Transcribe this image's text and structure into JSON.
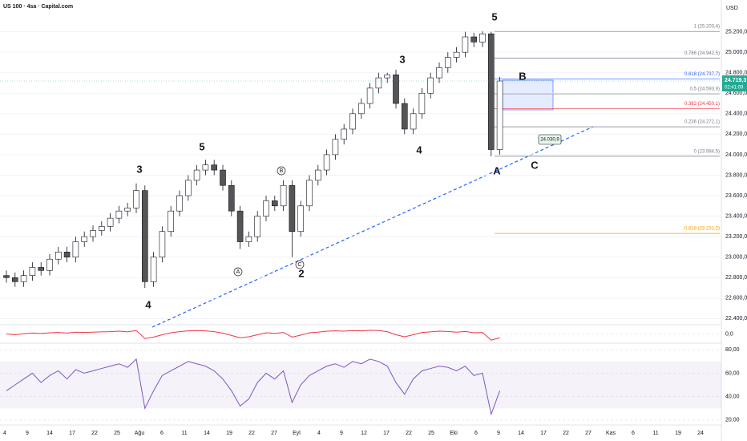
{
  "title": "US 100 · 4sa · Capital.com",
  "currency": "USD",
  "chart_data": [
    {
      "type": "candlestick",
      "open": [
        22820,
        22800,
        22760,
        22820,
        22900,
        22870,
        22980,
        23050,
        23000,
        23150,
        23200,
        23260,
        23300,
        23380,
        23450,
        23480,
        23650,
        22760,
        23000,
        23250,
        23450,
        23600,
        23750,
        23850,
        23900,
        23850,
        23700,
        23450,
        23150,
        23200,
        23400,
        23550,
        23500,
        23700,
        23250,
        23500,
        23750,
        23850,
        24000,
        24150,
        24250,
        24400,
        24500,
        24650,
        24750,
        24780,
        24500,
        24250,
        24400,
        24600,
        24750,
        24850,
        24950,
        25000,
        25150,
        25100,
        25180,
        24050
      ],
      "high": [
        22870,
        22850,
        22870,
        22950,
        22950,
        23030,
        23100,
        23100,
        23200,
        23250,
        23310,
        23350,
        23430,
        23500,
        23530,
        23720,
        23700,
        23050,
        23300,
        23500,
        23650,
        23800,
        23900,
        23950,
        23950,
        23900,
        23750,
        23500,
        23250,
        23450,
        23600,
        23600,
        23750,
        23750,
        23550,
        23800,
        23900,
        24050,
        24200,
        24300,
        24450,
        24550,
        24700,
        24800,
        24800,
        24830,
        24550,
        24450,
        24650,
        24800,
        24900,
        25000,
        25050,
        25200,
        25190,
        25203.4,
        25200,
        24760
      ],
      "low": [
        22750,
        22710,
        22710,
        22770,
        22820,
        22820,
        22930,
        22950,
        22950,
        23100,
        23150,
        23210,
        23250,
        23330,
        23400,
        23430,
        22700,
        22710,
        22950,
        23200,
        23400,
        23550,
        23700,
        23800,
        23800,
        23650,
        23400,
        23080,
        23100,
        23150,
        23350,
        23450,
        23450,
        23000,
        23200,
        23450,
        23700,
        23800,
        23950,
        24100,
        24200,
        24350,
        24450,
        24600,
        24700,
        24450,
        24200,
        24200,
        24350,
        24550,
        24700,
        24800,
        24900,
        24950,
        25050,
        25050,
        23984.5,
        24000
      ],
      "close": [
        22800,
        22760,
        22820,
        22900,
        22870,
        22980,
        23050,
        23000,
        23150,
        23200,
        23260,
        23300,
        23380,
        23450,
        23480,
        23650,
        22760,
        23000,
        23250,
        23450,
        23600,
        23750,
        23850,
        23900,
        23850,
        23700,
        23450,
        23150,
        23200,
        23400,
        23550,
        23500,
        23700,
        23250,
        23500,
        23750,
        23850,
        24000,
        24150,
        24250,
        24400,
        24500,
        24650,
        24750,
        24780,
        24500,
        24250,
        24400,
        24600,
        24750,
        24850,
        24950,
        25000,
        25150,
        25100,
        25180,
        24050,
        24719.3
      ],
      "up_color": "#ffffff",
      "down_color": "#555555",
      "x_labels": [
        "4",
        "9",
        "14",
        "17",
        "22",
        "25",
        "Ağu",
        "6",
        "11",
        "14",
        "19",
        "22",
        "27",
        "Eyl",
        "4",
        "9",
        "12",
        "17",
        "22",
        "25",
        "Eki",
        "6",
        "9",
        "14",
        "17",
        "22",
        "27",
        "Kas",
        "6",
        "11",
        "19",
        "24"
      ],
      "ylim": [
        22340,
        25510
      ],
      "yticks": [
        {
          "value": 25200,
          "label": "25.200,0"
        },
        {
          "value": 25000,
          "label": "25.000,0"
        },
        {
          "value": 24800,
          "label": "24.800,0"
        },
        {
          "value": 24600,
          "label": "24.600,0"
        },
        {
          "value": 24400,
          "label": "24.400,0"
        },
        {
          "value": 24200,
          "label": "24.200,0"
        },
        {
          "value": 24000,
          "label": "24.000,0"
        },
        {
          "value": 23800,
          "label": "23.800,0"
        },
        {
          "value": 23600,
          "label": "23.600,0"
        },
        {
          "value": 23400,
          "label": "23.400,0"
        },
        {
          "value": 23200,
          "label": "23.200,0"
        },
        {
          "value": 23000,
          "label": "23.000,0"
        },
        {
          "value": 22800,
          "label": "22.800,0"
        },
        {
          "value": 22600,
          "label": "22.600,0"
        },
        {
          "value": 22400,
          "label": "22.400,0"
        }
      ],
      "fib_levels": [
        {
          "value": 25203.4,
          "label": "1 (25.203,4)",
          "color": "#787b86"
        },
        {
          "value": 24942.5,
          "label": "0,786 (24.942,5)",
          "color": "#787b86"
        },
        {
          "value": 24737.7,
          "label": "0,618 (24.737,7)",
          "color": "#2962ff"
        },
        {
          "value": 24593.9,
          "label": "0,5 (24.593,9)",
          "color": "#787b86"
        },
        {
          "value": 24450.1,
          "label": "0,382 (24.450,1)",
          "color": "#f23645"
        },
        {
          "value": 24272.1,
          "label": "0,236 (24.272,1)",
          "color": "#787b86"
        },
        {
          "value": 23984.5,
          "label": "0 (23.984,5)",
          "color": "#787b86"
        },
        {
          "value": 23231.2,
          "label": "-0,618 (23.231,2)",
          "color": "#ff9800"
        }
      ],
      "last": {
        "value": 24719.3,
        "label": "24.719,3"
      },
      "countdown": "02:41:09",
      "trendline_label": "24.030,9",
      "annotations": [
        "5",
        "3",
        "4",
        "B",
        "A",
        "C",
        "3",
        "4",
        "5",
        "A",
        "B",
        "C",
        "2"
      ]
    },
    {
      "type": "line",
      "values": [
        0,
        -5,
        2,
        6,
        3,
        8,
        10,
        6,
        12,
        10,
        12,
        14,
        15,
        18,
        14,
        22,
        -30,
        -20,
        -5,
        8,
        15,
        20,
        22,
        20,
        15,
        5,
        -10,
        -25,
        -18,
        -5,
        8,
        4,
        10,
        -20,
        -8,
        8,
        12,
        18,
        20,
        18,
        22,
        20,
        24,
        22,
        15,
        -5,
        -18,
        -5,
        10,
        14,
        18,
        16,
        12,
        16,
        8,
        10,
        -40,
        -25
      ],
      "color": "#f23645",
      "ylim": [
        -60,
        60
      ],
      "yticks": [
        {
          "value": 0,
          "label": "0,0"
        }
      ]
    },
    {
      "type": "line",
      "values": [
        45,
        50,
        55,
        60,
        52,
        58,
        62,
        55,
        63,
        60,
        62,
        64,
        66,
        68,
        65,
        72,
        30,
        45,
        58,
        62,
        66,
        70,
        68,
        66,
        62,
        55,
        45,
        32,
        38,
        52,
        60,
        55,
        62,
        35,
        50,
        58,
        62,
        66,
        68,
        65,
        70,
        68,
        72,
        70,
        66,
        52,
        42,
        55,
        62,
        64,
        66,
        65,
        62,
        66,
        58,
        60,
        25,
        45
      ],
      "color": "#7e57c2",
      "ylim": [
        15.8,
        85.6
      ],
      "yticks": [
        {
          "value": 80,
          "label": "80,00"
        },
        {
          "value": 60,
          "label": "60,00"
        },
        {
          "value": 40,
          "label": "40,00"
        },
        {
          "value": 20,
          "label": "20,00"
        }
      ]
    }
  ]
}
